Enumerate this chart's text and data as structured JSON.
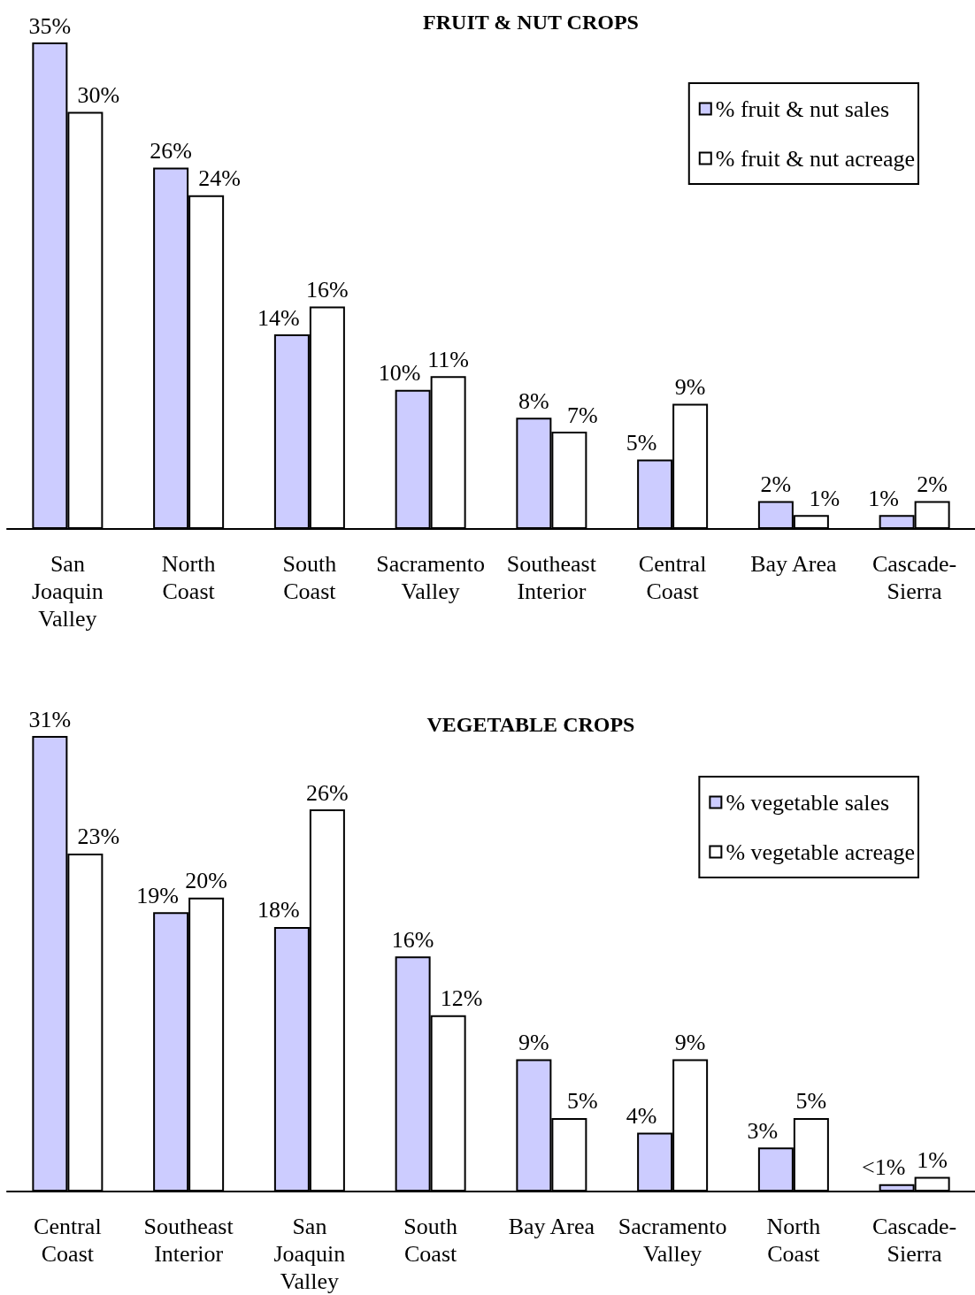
{
  "chart_data": [
    {
      "type": "bar",
      "title": "FRUIT & NUT CROPS",
      "categories": [
        "San Joaquin Valley",
        "North Coast",
        "South Coast",
        "Sacramento Valley",
        "Southeast Interior",
        "Central Coast",
        "Bay Area",
        "Cascade-Sierra"
      ],
      "series": [
        {
          "name": "% fruit & nut sales",
          "color": "#ccccff",
          "values": [
            35,
            26,
            14,
            10,
            8,
            5,
            2,
            1
          ],
          "value_labels": [
            "35%",
            "26%",
            "14%",
            "10%",
            "8%",
            "5%",
            "2%",
            "1%"
          ]
        },
        {
          "name": "% fruit & nut acreage",
          "color": "#ffffff",
          "values": [
            30,
            24,
            16,
            11,
            7,
            9,
            1,
            2
          ],
          "value_labels": [
            "30%",
            "24%",
            "16%",
            "11%",
            "7%",
            "9%",
            "1%",
            "2%"
          ]
        }
      ],
      "ylim": [
        0,
        35
      ],
      "legend": "top right",
      "tick_labels": "x"
    },
    {
      "type": "bar",
      "title": "VEGETABLE CROPS",
      "categories": [
        "Central Coast",
        "Southeast Interior",
        "San Joaquin Valley",
        "South Coast",
        "Bay Area",
        "Sacramento Valley",
        "North Coast",
        "Cascade-Sierra"
      ],
      "series": [
        {
          "name": "% vegetable sales",
          "color": "#ccccff",
          "values": [
            31,
            19,
            18,
            16,
            9,
            4,
            3,
            0.5
          ],
          "value_labels": [
            "31%",
            "19%",
            "18%",
            "16%",
            "9%",
            "4%",
            "3%",
            "<1%"
          ]
        },
        {
          "name": "% vegetable acreage",
          "color": "#ffffff",
          "values": [
            23,
            20,
            26,
            12,
            5,
            9,
            5,
            1
          ],
          "value_labels": [
            "23%",
            "20%",
            "26%",
            "12%",
            "5%",
            "9%",
            "5%",
            "1%"
          ]
        }
      ],
      "ylim": [
        0,
        31
      ],
      "legend": "top right",
      "tick_labels": "x"
    }
  ]
}
